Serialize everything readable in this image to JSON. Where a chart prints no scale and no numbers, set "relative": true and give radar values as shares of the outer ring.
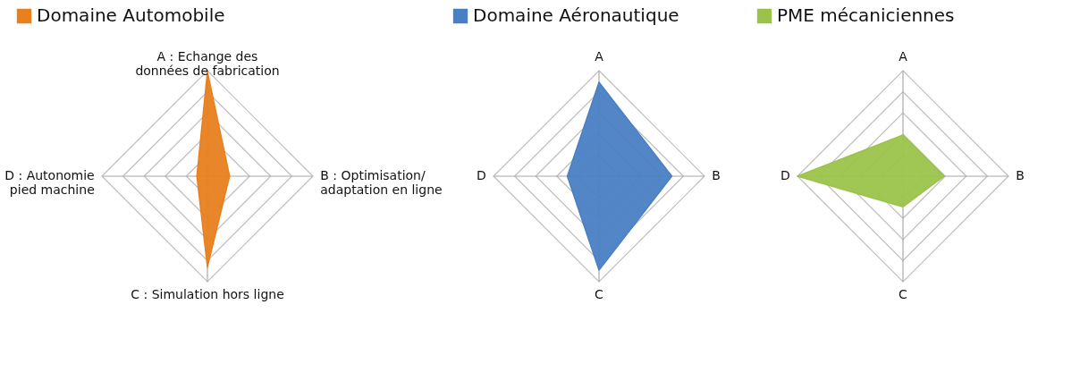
{
  "chart_data": [
    {
      "type": "radar",
      "relative": true,
      "grid": true,
      "legend": "top",
      "categories": [
        "A : Echange des\ndonnées de fabrication",
        "B : Optimisation/\nadaptation en ligne",
        "C : Simulation hors ligne",
        "D : Autonomie\npied machine"
      ],
      "series": [
        {
          "name": "Domaine Automobile",
          "color": "#e8801e",
          "values": [
            0.99,
            0.21,
            0.86,
            0.1
          ]
        }
      ]
    },
    {
      "type": "radar",
      "relative": true,
      "grid": true,
      "legend": "top",
      "categories": [
        "A",
        "B",
        "C",
        "D"
      ],
      "series": [
        {
          "name": "Domaine Aéronautique",
          "color": "#4a7fc4",
          "values": [
            0.89,
            0.69,
            0.89,
            0.3
          ]
        }
      ]
    },
    {
      "type": "radar",
      "relative": true,
      "grid": true,
      "legend": "top",
      "categories": [
        "A",
        "B",
        "C",
        "D"
      ],
      "series": [
        {
          "name": "PME mécaniciennes",
          "color": "#9bc34a",
          "values": [
            0.39,
            0.39,
            0.29,
            1.0
          ]
        }
      ]
    }
  ]
}
